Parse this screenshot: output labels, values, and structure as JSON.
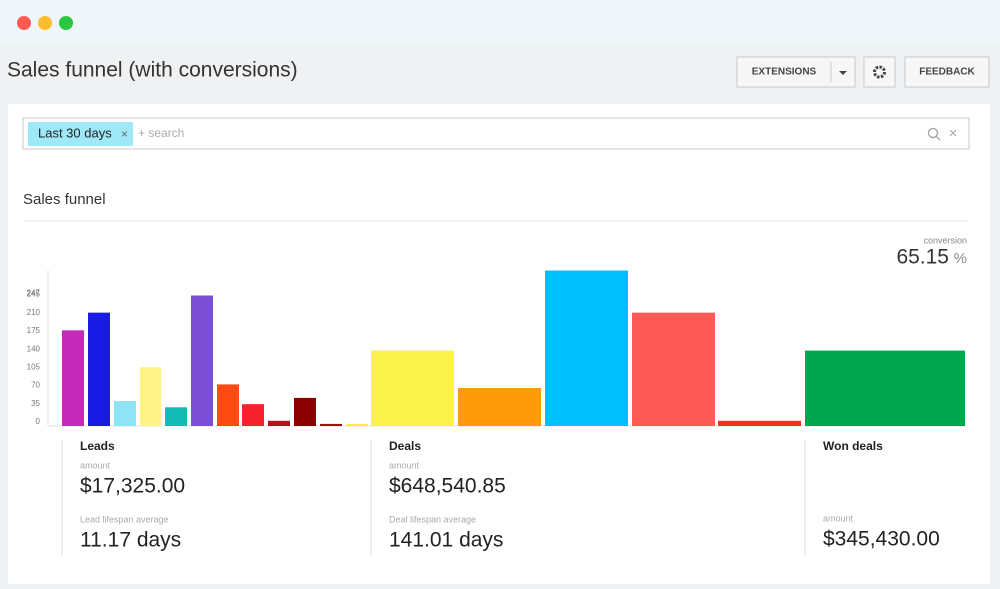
{
  "header": {
    "title": "Sales funnel (with conversions)",
    "buttons": [
      "EXTENSIONS",
      "FEEDBACK"
    ]
  },
  "filter": {
    "tag": "Last 30 days",
    "placeholder": "+ search"
  },
  "report": {
    "title": "Sales funnel",
    "conversion_label": "conversion",
    "conversion_value": "65.15",
    "conversion_unit": "%"
  },
  "chart_data": {
    "type": "bar",
    "categories": [
      null,
      null,
      null,
      null,
      null,
      null,
      null,
      null,
      null,
      null,
      null,
      null,
      null,
      null,
      null,
      null,
      null,
      null
    ],
    "values": [
      184,
      218,
      48,
      113,
      36,
      251,
      80,
      42,
      10,
      54,
      4,
      4,
      145,
      73,
      299,
      218,
      10,
      145
    ],
    "colors": [
      "#c42ab8",
      "#1a1ae6",
      "#8ee3f5",
      "#fff38a",
      "#12bcb4",
      "#7b4fd6",
      "#ff4a12",
      "#f5222d",
      "#b3121b",
      "#8b0000",
      "#a01010",
      "#ffe94a",
      "#fbf24a",
      "#ff9a0a",
      "#00bfff",
      "#ff5a55",
      "#f0321e",
      "#00a550"
    ],
    "ylim": [
      0,
      300
    ],
    "yticks": [
      0,
      35,
      70,
      105,
      140,
      175,
      210,
      245,
      247
    ]
  },
  "stages": [
    {
      "name": "Leads",
      "metrics": [
        {
          "label": "amount",
          "value": "$17,325.00"
        },
        {
          "label": "Lead lifespan average",
          "value": "11.17 days"
        }
      ]
    },
    {
      "name": "Deals",
      "metrics": [
        {
          "label": "amount",
          "value": "$648,540.85"
        },
        {
          "label": "Deal lifespan average",
          "value": "141.01 days"
        }
      ]
    },
    {
      "name": "Won deals",
      "metrics": [
        {
          "label": "amount",
          "value": "$345,430.00"
        }
      ]
    }
  ]
}
